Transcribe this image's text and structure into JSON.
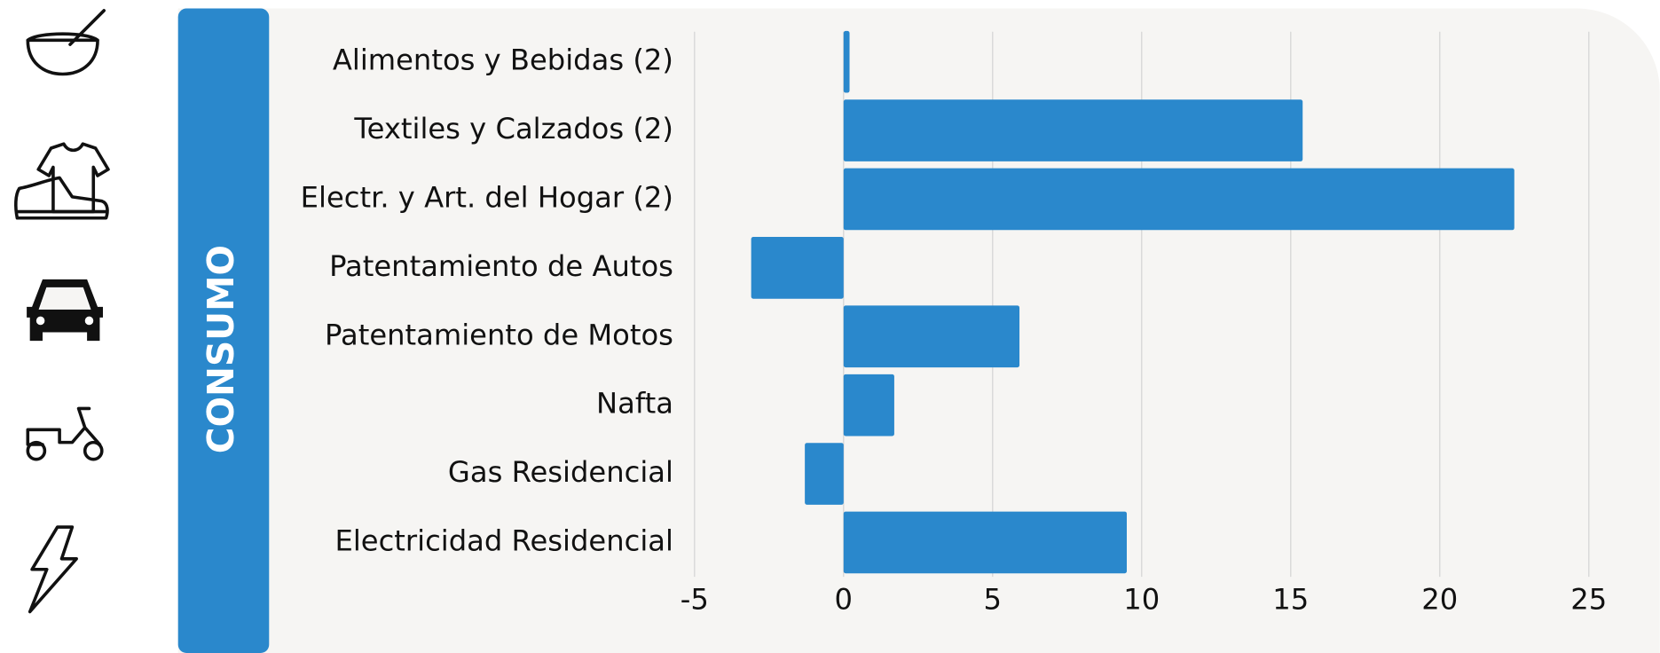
{
  "chart_data": {
    "type": "bar",
    "orientation": "horizontal",
    "title": "CONSUMO",
    "categories": [
      "Alimentos y Bebidas (2)",
      "Textiles y Calzados (2)",
      "Electr. y Art. del Hogar (2)",
      "Patentamiento de Autos",
      "Patentamiento de Motos",
      "Nafta",
      "Gas Residencial",
      "Electricidad Residencial"
    ],
    "values": [
      0.2,
      15.4,
      22.5,
      -3.1,
      5.9,
      1.7,
      -1.3,
      9.5
    ],
    "color": "#2a88cc",
    "xlim": [
      -5,
      25
    ],
    "xticks": [
      -5,
      0,
      5,
      10,
      15,
      20,
      25
    ],
    "grid": true
  }
}
